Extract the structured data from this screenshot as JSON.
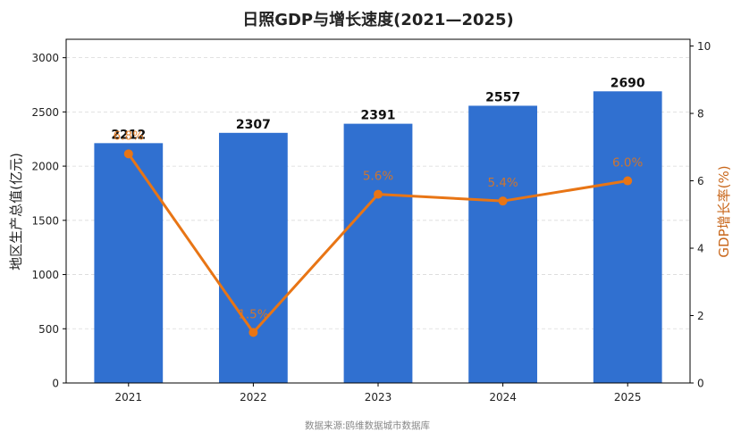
{
  "chart_data": {
    "type": "bar",
    "title": "日照GDP与增长速度(2021—2025)",
    "categories": [
      "2021",
      "2022",
      "2023",
      "2024",
      "2025"
    ],
    "series": [
      {
        "name": "",
        "type": "bar",
        "axis": "left",
        "values": [
          2212,
          2307,
          2391,
          2557,
          2690
        ],
        "labels": [
          "2212",
          "2307",
          "2391",
          "2557",
          "2690"
        ]
      },
      {
        "name": "",
        "type": "line",
        "axis": "right",
        "values": [
          6.8,
          1.5,
          5.6,
          5.4,
          6.0
        ],
        "labels": [
          "6.8%",
          "1.5%",
          "5.6%",
          "5.4%",
          "6.0%"
        ]
      }
    ],
    "ylabel": "地区生产总值(亿元)",
    "y2label": "GDP增长率(%)",
    "ylim": [
      0,
      3170
    ],
    "y2lim": [
      0,
      10.2
    ],
    "yticks": [
      "0",
      "500",
      "1000",
      "1500",
      "2000",
      "2500",
      "3000"
    ],
    "y2ticks": [
      "0",
      "2",
      "4",
      "6",
      "8",
      "10"
    ],
    "grid": true,
    "bar_color": "#3070d0",
    "line_color": "#e87515",
    "source": "数据来源:鸥维数据城市数据库"
  }
}
